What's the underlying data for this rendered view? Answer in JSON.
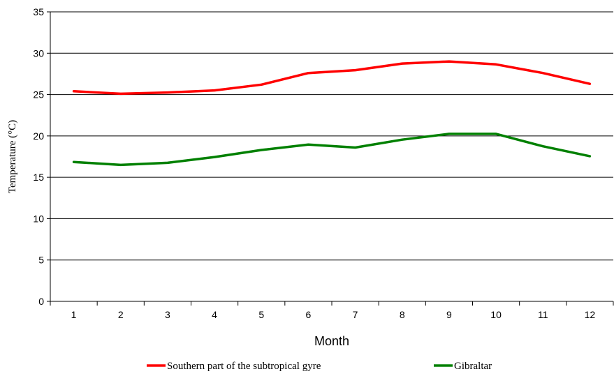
{
  "chart_data": {
    "type": "line",
    "categories": [
      "1",
      "2",
      "3",
      "4",
      "5",
      "6",
      "7",
      "8",
      "9",
      "10",
      "11",
      "12"
    ],
    "series": [
      {
        "name": "Southern part of the subtropical gyre",
        "color": "#ff0000",
        "values": [
          25.4,
          25.1,
          25.25,
          25.5,
          26.2,
          27.6,
          27.95,
          28.75,
          29.0,
          28.65,
          27.6,
          26.3
        ]
      },
      {
        "name": "Gibraltar",
        "color": "#008000",
        "values": [
          16.85,
          16.5,
          16.75,
          17.45,
          18.3,
          18.95,
          18.6,
          19.55,
          20.25,
          20.25,
          18.75,
          17.55
        ]
      }
    ],
    "xlabel": "Month",
    "ylabel": "Temperature (°C)",
    "ylim": [
      0,
      35
    ],
    "yticks": [
      0,
      5,
      10,
      15,
      20,
      25,
      30,
      35
    ],
    "grid": "horizontal",
    "legend": "bottom"
  }
}
